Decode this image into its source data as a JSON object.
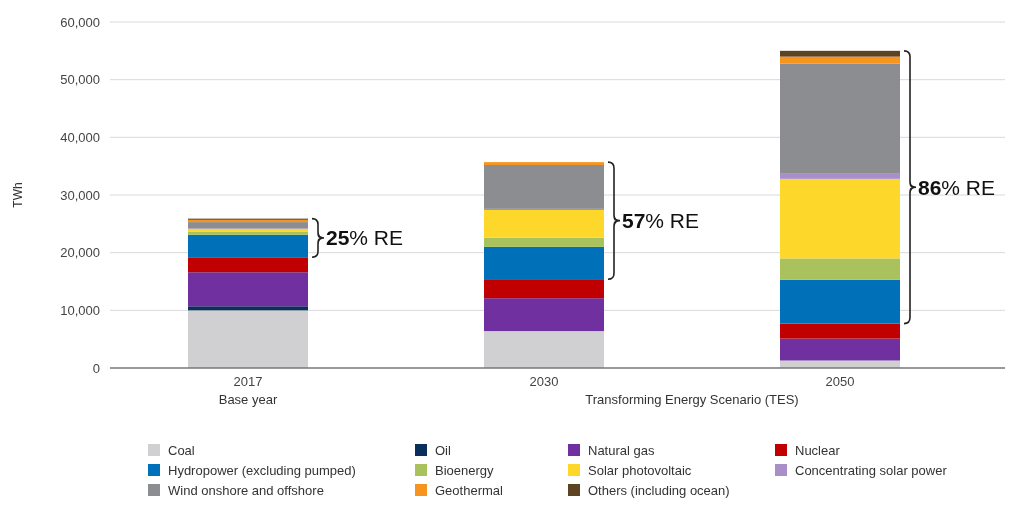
{
  "chart_data": {
    "type": "bar",
    "stacked": true,
    "ylabel": "TWh",
    "categories": [
      "2017",
      "2030",
      "2050"
    ],
    "series": [
      {
        "name": "Coal",
        "color": "#d0d0d2",
        "values": [
          10000,
          6400,
          1300
        ]
      },
      {
        "name": "Oil",
        "color": "#0b2f5b",
        "values": [
          700,
          0,
          0
        ]
      },
      {
        "name": "Natural gas",
        "color": "#7030a0",
        "values": [
          5900,
          5700,
          3800
        ]
      },
      {
        "name": "Nuclear",
        "color": "#c00000",
        "values": [
          2600,
          3300,
          2600
        ]
      },
      {
        "name": "Hydropower (excluding pumped)",
        "color": "#0070b8",
        "values": [
          3900,
          5600,
          7600
        ]
      },
      {
        "name": "Bioenergy",
        "color": "#a9c25d",
        "values": [
          500,
          1600,
          3700
        ]
      },
      {
        "name": "Solar photovoltaic",
        "color": "#fdd72a",
        "values": [
          500,
          4800,
          13800
        ]
      },
      {
        "name": "Concentrating solar power",
        "color": "#a98fc8",
        "values": [
          100,
          200,
          1000
        ]
      },
      {
        "name": "Wind onshore and offshore",
        "color": "#8c8d90",
        "values": [
          1100,
          7600,
          19000
        ]
      },
      {
        "name": "Geothermal",
        "color": "#f7941d",
        "values": [
          400,
          500,
          1200
        ]
      },
      {
        "name": "Others (including ocean)",
        "color": "#5e4322",
        "values": [
          200,
          null,
          1000
        ]
      }
    ],
    "ylim": [
      0,
      60000
    ],
    "yticks": [
      {
        "value": 0,
        "label": "0"
      },
      {
        "value": 10000,
        "label": "10,000"
      },
      {
        "value": 20000,
        "label": "20,000"
      },
      {
        "value": 30000,
        "label": "30,000"
      },
      {
        "value": 40000,
        "label": "40,000"
      },
      {
        "value": 50000,
        "label": "50,000"
      },
      {
        "value": 60000,
        "label": "60,000"
      }
    ],
    "grid": "y",
    "legend": "bottom",
    "annotations": [
      "25% RE",
      "57% RE",
      "86% RE",
      "Base year",
      "Transforming Energy Scenario (TES)"
    ]
  }
}
